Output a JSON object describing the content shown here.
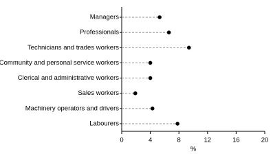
{
  "chart_data": {
    "type": "dot",
    "categories": [
      "Managers",
      "Professionals",
      "Technicians and trades workers",
      "Community and personal service workers",
      "Clerical and administrative workers",
      "Sales workers",
      "Machinery operators and drivers",
      "Labourers"
    ],
    "values": [
      5.3,
      6.6,
      9.4,
      4.0,
      4.0,
      1.9,
      4.3,
      7.8
    ],
    "color": "#000000",
    "x_label": "%",
    "xlim": [
      0,
      20
    ],
    "xticks": [
      0,
      4,
      8,
      12,
      16,
      20
    ]
  }
}
